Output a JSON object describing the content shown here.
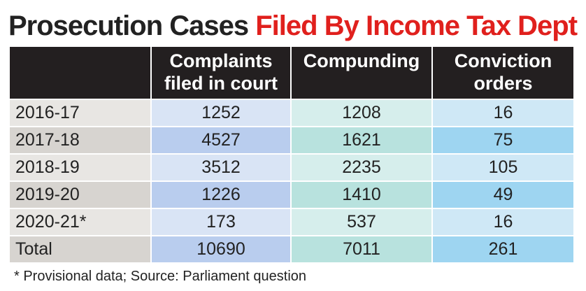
{
  "title": {
    "part1": "Prosecution Cases ",
    "part2": "Filed By Income Tax Dept"
  },
  "columns": [
    "",
    "Complaints filed in court",
    "Compunding",
    "Conviction orders"
  ],
  "rows": [
    {
      "year": "2016-17",
      "values": [
        "1252",
        "1208",
        "16"
      ]
    },
    {
      "year": "2017-18",
      "values": [
        "4527",
        "1621",
        "75"
      ]
    },
    {
      "year": "2018-19",
      "values": [
        "3512",
        "2235",
        "105"
      ]
    },
    {
      "year": "2019-20",
      "values": [
        "1226",
        "1410",
        "49"
      ]
    },
    {
      "year": "2020-21*",
      "values": [
        "173",
        "537",
        "16"
      ]
    },
    {
      "year": "Total",
      "values": [
        "10690",
        "7011",
        "261"
      ]
    }
  ],
  "footnote": "* Provisional data; Source: Parliament question",
  "chart_data": {
    "type": "table",
    "title": "Prosecution Cases Filed By Income Tax Dept",
    "columns": [
      "Complaints filed in court",
      "Compunding",
      "Conviction orders"
    ],
    "rows": [
      "2016-17",
      "2017-18",
      "2018-19",
      "2019-20",
      "2020-21*",
      "Total"
    ],
    "values": [
      [
        1252,
        1208,
        16
      ],
      [
        4527,
        1621,
        75
      ],
      [
        3512,
        2235,
        105
      ],
      [
        1226,
        1410,
        49
      ],
      [
        173,
        537,
        16
      ],
      [
        10690,
        7011,
        261
      ]
    ]
  }
}
